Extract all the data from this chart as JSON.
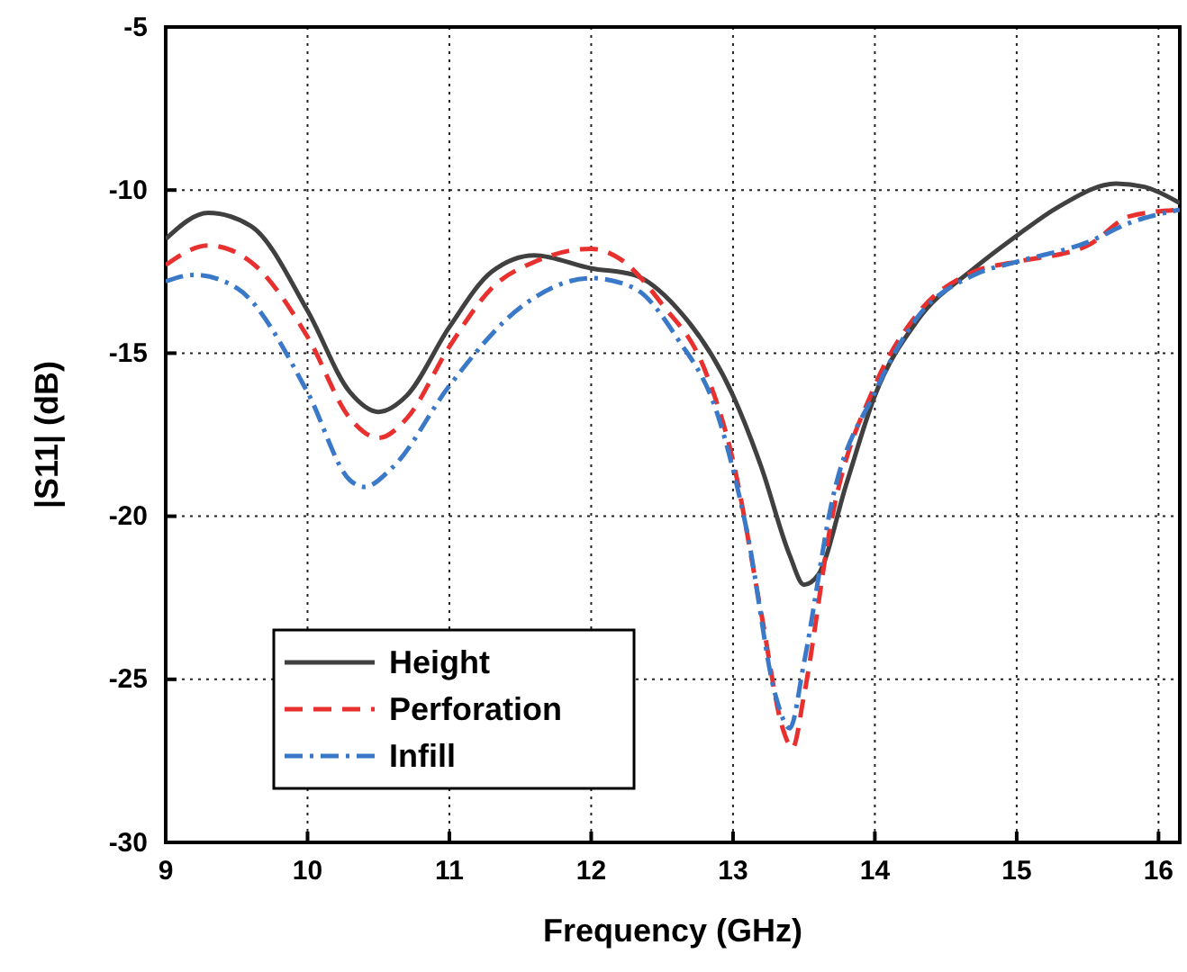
{
  "chart_data": {
    "type": "line",
    "xlabel": "Frequency (GHz)",
    "ylabel": "|S11| (dB)",
    "xlim": [
      9,
      16.15
    ],
    "ylim": [
      -30,
      -5
    ],
    "xticks": [
      9,
      10,
      11,
      12,
      13,
      14,
      15,
      16
    ],
    "yticks": [
      -30,
      -25,
      -20,
      -15,
      -10,
      -5
    ],
    "grid": true,
    "legend": "bottom left",
    "marker": "none",
    "series": [
      {
        "name": "Height",
        "color": "#404040",
        "line_style": "solid",
        "x": [
          9.0,
          9.3,
          9.6,
          10.0,
          10.3,
          10.5,
          10.7,
          11.0,
          11.3,
          11.6,
          12.0,
          12.3,
          12.6,
          13.0,
          13.2,
          13.4,
          13.5,
          13.6,
          13.8,
          14.0,
          14.3,
          14.7,
          15.0,
          15.3,
          15.7,
          15.9,
          16.15
        ],
        "values": [
          -11.5,
          -10.7,
          -11.1,
          -13.7,
          -16.2,
          -16.8,
          -16.3,
          -14.2,
          -12.5,
          -12.0,
          -12.4,
          -12.6,
          -13.6,
          -16.3,
          -18.5,
          -21.2,
          -22.1,
          -21.8,
          -19.0,
          -16.3,
          -14.0,
          -12.4,
          -11.4,
          -10.5,
          -9.8,
          -9.9,
          -10.4
        ]
      },
      {
        "name": "Perforation",
        "color": "#e8312f",
        "line_style": "dashed",
        "x": [
          9.0,
          9.3,
          9.6,
          10.0,
          10.3,
          10.5,
          10.7,
          11.0,
          11.3,
          11.6,
          12.0,
          12.2,
          12.5,
          12.8,
          13.0,
          13.2,
          13.35,
          13.42,
          13.5,
          13.7,
          14.0,
          14.3,
          14.7,
          15.0,
          15.5,
          15.8,
          16.15
        ],
        "values": [
          -12.3,
          -11.7,
          -12.2,
          -14.5,
          -17.0,
          -17.6,
          -17.0,
          -14.8,
          -13.0,
          -12.2,
          -11.8,
          -12.1,
          -13.5,
          -15.5,
          -18.3,
          -23.0,
          -26.5,
          -27.1,
          -25.5,
          -20.0,
          -16.0,
          -13.8,
          -12.5,
          -12.2,
          -11.7,
          -10.8,
          -10.6
        ]
      },
      {
        "name": "Infill",
        "color": "#3a78c8",
        "line_style": "dashdot",
        "x": [
          9.0,
          9.2,
          9.5,
          10.0,
          10.3,
          10.4,
          10.6,
          11.0,
          11.5,
          12.0,
          12.3,
          12.6,
          12.9,
          13.1,
          13.3,
          13.4,
          13.5,
          13.7,
          14.0,
          14.3,
          14.7,
          15.0,
          15.5,
          15.8,
          16.15
        ],
        "values": [
          -12.8,
          -12.6,
          -13.0,
          -16.2,
          -18.9,
          -19.1,
          -18.5,
          -16.0,
          -13.6,
          -12.7,
          -13.0,
          -14.5,
          -17.0,
          -20.5,
          -25.5,
          -26.5,
          -24.5,
          -19.5,
          -16.2,
          -13.9,
          -12.6,
          -12.2,
          -11.6,
          -11.0,
          -10.6
        ]
      }
    ]
  }
}
